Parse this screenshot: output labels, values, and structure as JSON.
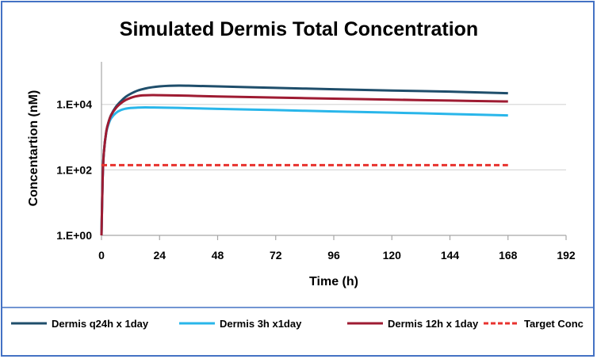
{
  "chart_data": {
    "type": "line",
    "title": "Simulated Dermis Total Concentration",
    "xlabel": "Time (h)",
    "ylabel": "Concentartion (nM)",
    "xlim": [
      0,
      192
    ],
    "xticks": [
      0,
      24,
      48,
      72,
      96,
      120,
      144,
      168,
      192
    ],
    "xtick_labels": [
      "0",
      "24",
      "48",
      "72",
      "96",
      "120",
      "144",
      "168",
      "192"
    ],
    "y_scale": "log",
    "ylim": [
      1,
      200000
    ],
    "yticks": [
      1,
      100,
      10000
    ],
    "ytick_labels": [
      "1.E+00",
      "1.E+02",
      "1.E+04"
    ],
    "grid": "horizontal",
    "legend_position": "bottom",
    "series": [
      {
        "name": "Dermis q24h x 1day",
        "color": "#1f4e6b",
        "style": "solid",
        "x": [
          0,
          0.5,
          1,
          2,
          3,
          4,
          6,
          8,
          10,
          12,
          15,
          18,
          21,
          24,
          28,
          32,
          36,
          48,
          72,
          96,
          120,
          144,
          168
        ],
        "y": [
          1,
          60,
          350,
          1500,
          3000,
          4800,
          8500,
          12500,
          17000,
          21000,
          26500,
          30500,
          33500,
          35500,
          37000,
          37500,
          37200,
          35500,
          32000,
          29000,
          26500,
          24500,
          22000
        ]
      },
      {
        "name": "Dermis 3h x1day",
        "color": "#29b6ea",
        "style": "solid",
        "x": [
          0,
          0.5,
          1,
          2,
          3,
          4,
          6,
          8,
          10,
          12,
          15,
          18,
          21,
          24,
          36,
          48,
          72,
          96,
          120,
          144,
          168
        ],
        "y": [
          1,
          60,
          350,
          1400,
          2600,
          3800,
          5500,
          6700,
          7400,
          7800,
          8000,
          8100,
          8050,
          8000,
          7700,
          7300,
          6700,
          6100,
          5600,
          5100,
          4600
        ]
      },
      {
        "name": "Dermis 12h x 1day",
        "color": "#9e1b32",
        "style": "solid",
        "x": [
          0,
          0.5,
          1,
          2,
          3,
          4,
          6,
          8,
          10,
          12,
          14,
          16,
          18,
          21,
          24,
          36,
          48,
          72,
          96,
          120,
          144,
          168
        ],
        "y": [
          1,
          60,
          350,
          1500,
          3000,
          4700,
          7800,
          10800,
          13600,
          15800,
          17500,
          18600,
          19000,
          19200,
          19100,
          18400,
          17500,
          16200,
          15000,
          14000,
          13100,
          12300
        ]
      },
      {
        "name": "Target Conc",
        "color": "#e8322e",
        "style": "dashed",
        "x": [
          0,
          168
        ],
        "y": [
          140,
          140
        ]
      }
    ]
  }
}
